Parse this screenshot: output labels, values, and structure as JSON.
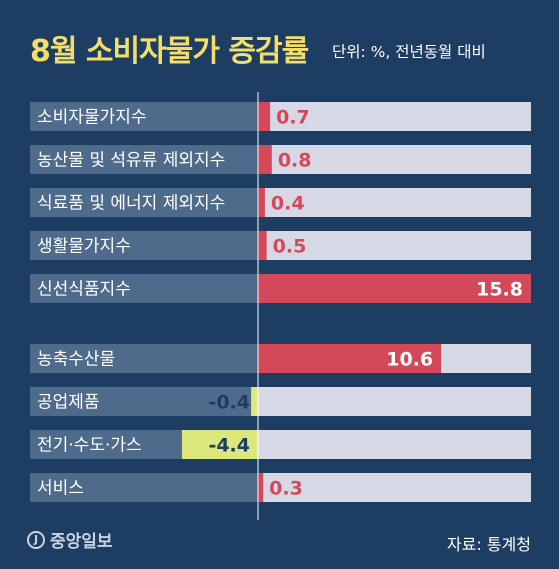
{
  "chart_data": {
    "type": "bar",
    "orientation": "horizontal",
    "title": "8월 소비자물가 증감률",
    "unit_note": "단위: %, 전년동월 대비",
    "categories": [
      "소비자물가지수",
      "농산물 및 석유류 제외지수",
      "식료품 및 에너지 제외지수",
      "생활물가지수",
      "신선식품지수",
      "농축수산물",
      "공업제품",
      "전기·수도·가스",
      "서비스"
    ],
    "values": [
      0.7,
      0.8,
      0.4,
      0.5,
      15.8,
      10.6,
      -0.4,
      -4.4,
      0.3
    ],
    "value_labels": [
      "0.7",
      "0.8",
      "0.4",
      "0.5",
      "15.8",
      "10.6",
      "-0.4",
      "-4.4",
      "0.3"
    ],
    "groups": [
      [
        0,
        1,
        2,
        3,
        4
      ],
      [
        5,
        6,
        7,
        8
      ]
    ],
    "xlim": [
      -4.4,
      15.8
    ],
    "colors": {
      "positive": "#d4495a",
      "negative": "#dce87c",
      "label_bg": "#4f6b8c",
      "track": "#d6d9e5",
      "axis": "#ffffff",
      "positive_text": "#d4495a",
      "negative_text": "#1d3d63",
      "inside_text": "#ffffff"
    }
  },
  "source": "자료: 통계청",
  "logo": {
    "icon": "jungang-logo-icon",
    "icon_glyph": "J",
    "text": "중앙일보"
  }
}
